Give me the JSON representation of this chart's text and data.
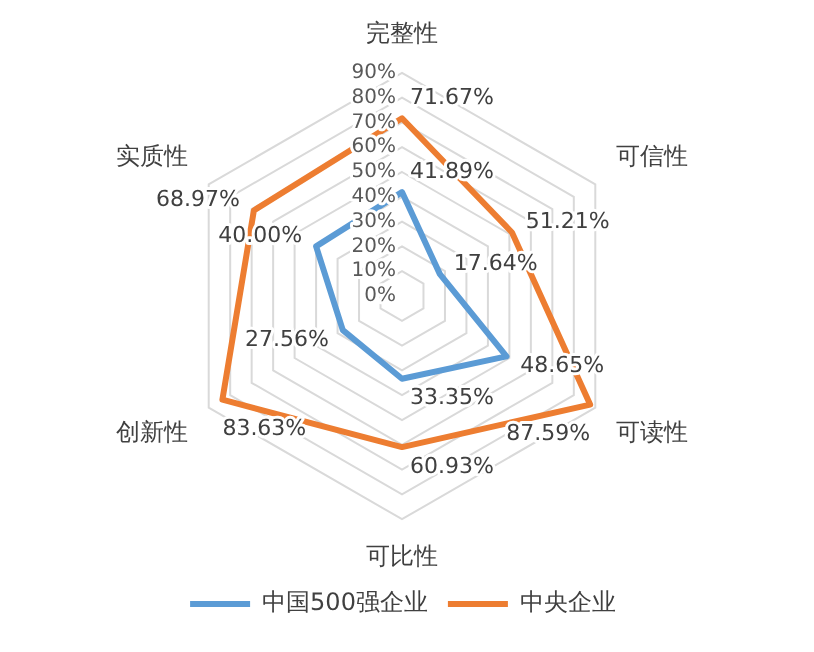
{
  "chart_data": {
    "type": "radar",
    "categories": [
      "完整性",
      "可信性",
      "可读性",
      "可比性",
      "创新性",
      "实质性"
    ],
    "series": [
      {
        "name": "中国500强企业",
        "color": "#5b9bd5",
        "values": [
          41.89,
          17.64,
          48.65,
          33.35,
          27.56,
          40.0
        ],
        "value_labels": [
          "41.89%",
          "17.64%",
          "48.65%",
          "33.35%",
          "27.56%",
          "40.00%"
        ]
      },
      {
        "name": "中央企业",
        "color": "#ed7d31",
        "values": [
          71.67,
          51.21,
          87.59,
          60.93,
          83.63,
          68.97
        ],
        "value_labels": [
          "71.67%",
          "51.21%",
          "87.59%",
          "60.93%",
          "83.63%",
          "68.97%"
        ]
      }
    ],
    "ylim": [
      0,
      90
    ],
    "yticks": [
      {
        "value": 0,
        "label": "0%"
      },
      {
        "value": 10,
        "label": "10%"
      },
      {
        "value": 20,
        "label": "20%"
      },
      {
        "value": 30,
        "label": "30%"
      },
      {
        "value": 40,
        "label": "40%"
      },
      {
        "value": 50,
        "label": "50%"
      },
      {
        "value": 60,
        "label": "60%"
      },
      {
        "value": 70,
        "label": "70%"
      },
      {
        "value": 80,
        "label": "80%"
      },
      {
        "value": 90,
        "label": "90%"
      }
    ],
    "grid": true,
    "legend": "bottom",
    "marker": "none",
    "line_style": "solid"
  }
}
